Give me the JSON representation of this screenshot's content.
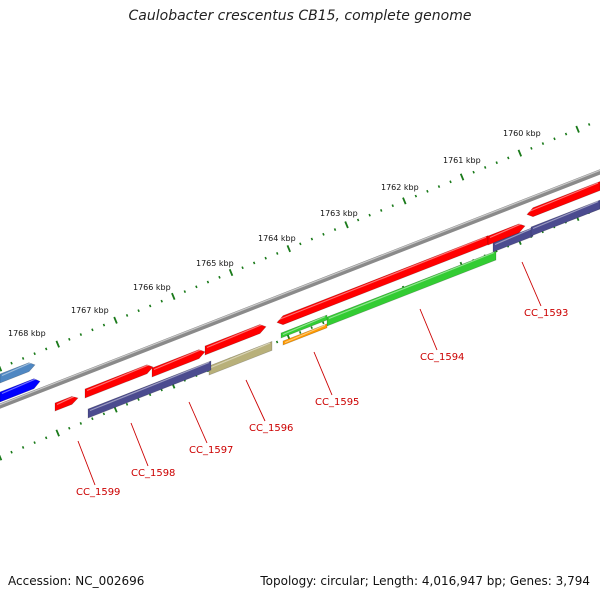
{
  "header": {
    "title": "Caulobacter crescentus CB15, complete genome"
  },
  "footer": {
    "accession": "Accession: NC_002696",
    "summary": "Topology: circular; Length: 4,016,947 bp; Genes: 3,794"
  },
  "colors": {
    "background": "#ffffff",
    "backbone": "#8a8a8a",
    "tick": "#1a7a1a",
    "cds_red": "#ff0000",
    "gene_navy": "#4b4b8f",
    "gene_green": "#33cc33",
    "gene_orange": "#ff9900",
    "gene_khaki": "#b8b07a",
    "gene_blue": "#0000ff",
    "gene_steelblue": "#4f87c2",
    "label": "#cc0000"
  },
  "kbp_labels": [
    "1760 kbp",
    "1761 kbp",
    "1762 kbp",
    "1763 kbp",
    "1764 kbp",
    "1765 kbp",
    "1766 kbp",
    "1767 kbp",
    "1768 kbp"
  ],
  "gene_labels": [
    "CC_1593",
    "CC_1594",
    "CC_1595",
    "CC_1596",
    "CC_1597",
    "CC_1598",
    "CC_1599"
  ]
}
